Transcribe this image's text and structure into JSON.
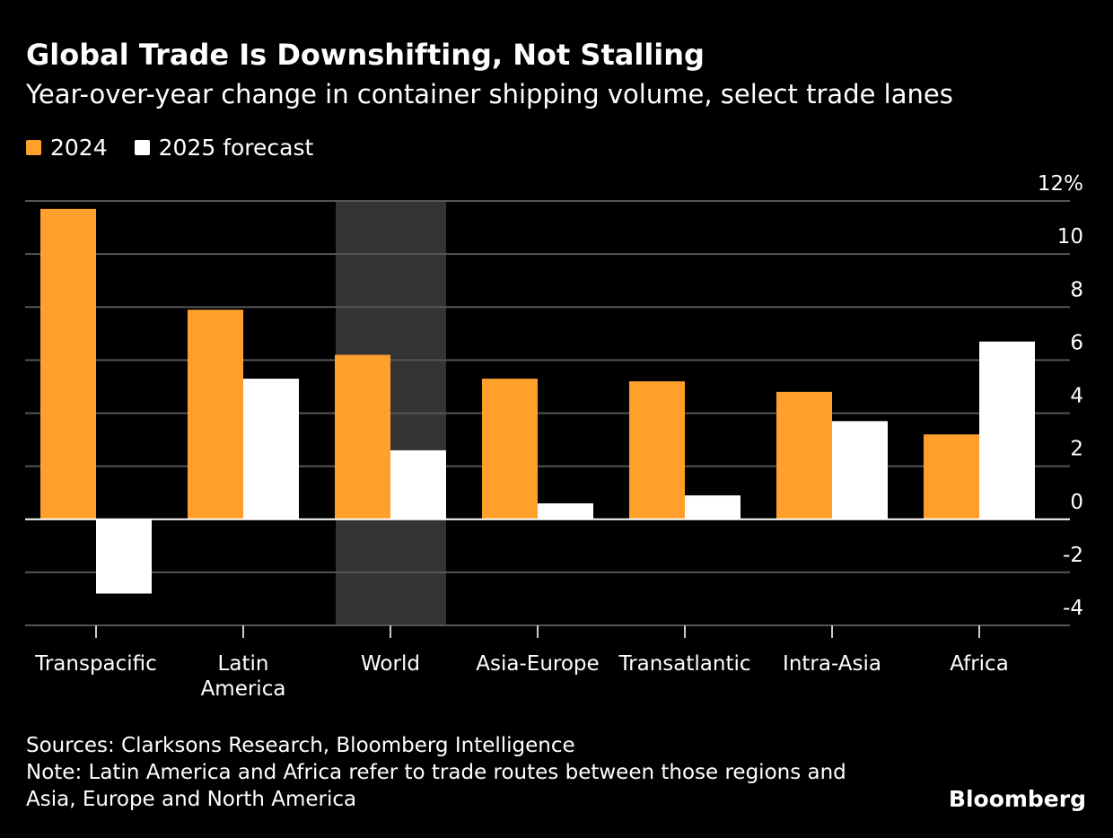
{
  "title": "Global Trade Is Downshifting, Not Stalling",
  "subtitle": "Year-over-year change in container shipping volume, select trade lanes",
  "colors": {
    "s2024": "#ffa02c",
    "s2025": "#ffffff",
    "highlight": "#333333",
    "grid": "#555555"
  },
  "chart_data": {
    "type": "bar",
    "categories": [
      [
        "Transpacific"
      ],
      [
        "Latin",
        "America"
      ],
      [
        "World"
      ],
      [
        "Asia-Europe"
      ],
      [
        "Transatlantic"
      ],
      [
        "Intra-Asia"
      ],
      [
        "Africa"
      ]
    ],
    "series": [
      {
        "name": "2024",
        "values": [
          11.7,
          7.9,
          6.2,
          5.3,
          5.2,
          4.8,
          3.2
        ]
      },
      {
        "name": "2025 forecast",
        "values": [
          -2.8,
          5.3,
          2.6,
          0.6,
          0.9,
          3.7,
          6.7
        ]
      }
    ],
    "ylim": [
      -4,
      12
    ],
    "yticks": [
      12,
      10,
      8,
      6,
      4,
      2,
      0,
      -2,
      -4
    ],
    "ytick_labels": [
      "12%",
      "10",
      "8",
      "6",
      "4",
      "2",
      "0",
      "-2",
      "-4"
    ],
    "highlighted_category": "World",
    "grid": true,
    "legend": "top-left",
    "axis_side": "right"
  },
  "footer": {
    "sources": "Sources: Clarksons Research, Bloomberg Intelligence",
    "note1": "Note: Latin America and Africa refer to trade routes between those regions and",
    "note2": "Asia, Europe and North America"
  },
  "logo": "Bloomberg"
}
